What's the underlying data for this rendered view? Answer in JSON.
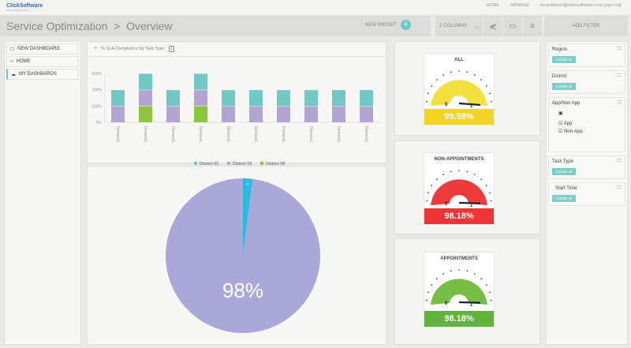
{
  "app": {
    "logo": "ClickSoftware",
    "logo_tag": "Getting Service Done",
    "links": [
      "HOME",
      "MANAGE"
    ],
    "user": "mr.goldstein@clicksoftware.com (sign out)"
  },
  "header": {
    "breadcrumb": "Service Optimization  >  Overview",
    "new_widget": "NEW WIDGET",
    "columns": "2 COLUMNS",
    "add_filter": "ADD FILTER"
  },
  "sidebar": {
    "items": [
      {
        "label": "NEW DASHBOARD",
        "icon": "new-doc-icon"
      },
      {
        "label": "HOME",
        "icon": "home-icon"
      },
      {
        "label": "MY DASHBARDS",
        "icon": "cloud-icon"
      }
    ]
  },
  "chart_data": [
    {
      "type": "bar",
      "stacked": true,
      "title": "% SLA Compliance by Task Type",
      "yticks": [
        "0%",
        "100%",
        "200%",
        "300%"
      ],
      "ylim": [
        0,
        300
      ],
      "categories": [
        "Demand...",
        "Demand...",
        "Demand...",
        "Demand...",
        "Demand...",
        "Demand...",
        "Demand...",
        "Demand...",
        "Demand...",
        "Demand..."
      ],
      "legend_position": "bottom",
      "series": [
        {
          "name": "District 08",
          "color": "#8cc63f",
          "values": [
            0,
            100,
            0,
            100,
            0,
            0,
            0,
            0,
            0,
            0
          ]
        },
        {
          "name": "District 03",
          "color": "#b3a5d3",
          "values": [
            100,
            100,
            100,
            100,
            100,
            100,
            100,
            100,
            100,
            100
          ]
        },
        {
          "name": "District 01",
          "color": "#72c9c4",
          "values": [
            100,
            100,
            100,
            100,
            100,
            100,
            100,
            100,
            100,
            100
          ]
        }
      ]
    },
    {
      "type": "pie",
      "slices": [
        {
          "label": "98%",
          "value": 98,
          "color": "#aaa8d8"
        },
        {
          "label": "2%",
          "value": 2,
          "color": "#2bbbe0"
        }
      ]
    }
  ],
  "gauges": [
    {
      "title": "ALL",
      "value": "99.58%",
      "fraction": 0.9958,
      "color": "#f2e03c",
      "band": "#f0d526",
      "min": "0",
      "max": "1"
    },
    {
      "title": "NON-APPOINTMENTS",
      "value": "98.18%",
      "fraction": 0.9818,
      "color": "#ef3b3b",
      "band": "#ee3535",
      "min": "0",
      "max": "1"
    },
    {
      "title": "APPOINTMENTS",
      "value": "98.18%",
      "fraction": 0.9818,
      "color": "#74bf44",
      "band": "#62b33a",
      "min": "0",
      "max": "1"
    }
  ],
  "filters": {
    "include_all": "Include all",
    "region": "Region",
    "district": "District",
    "appnonapp": "App/Non App",
    "app": "App",
    "nonapp": "Non-App",
    "tasktype": "Task Type",
    "starttime": "Start Time"
  }
}
